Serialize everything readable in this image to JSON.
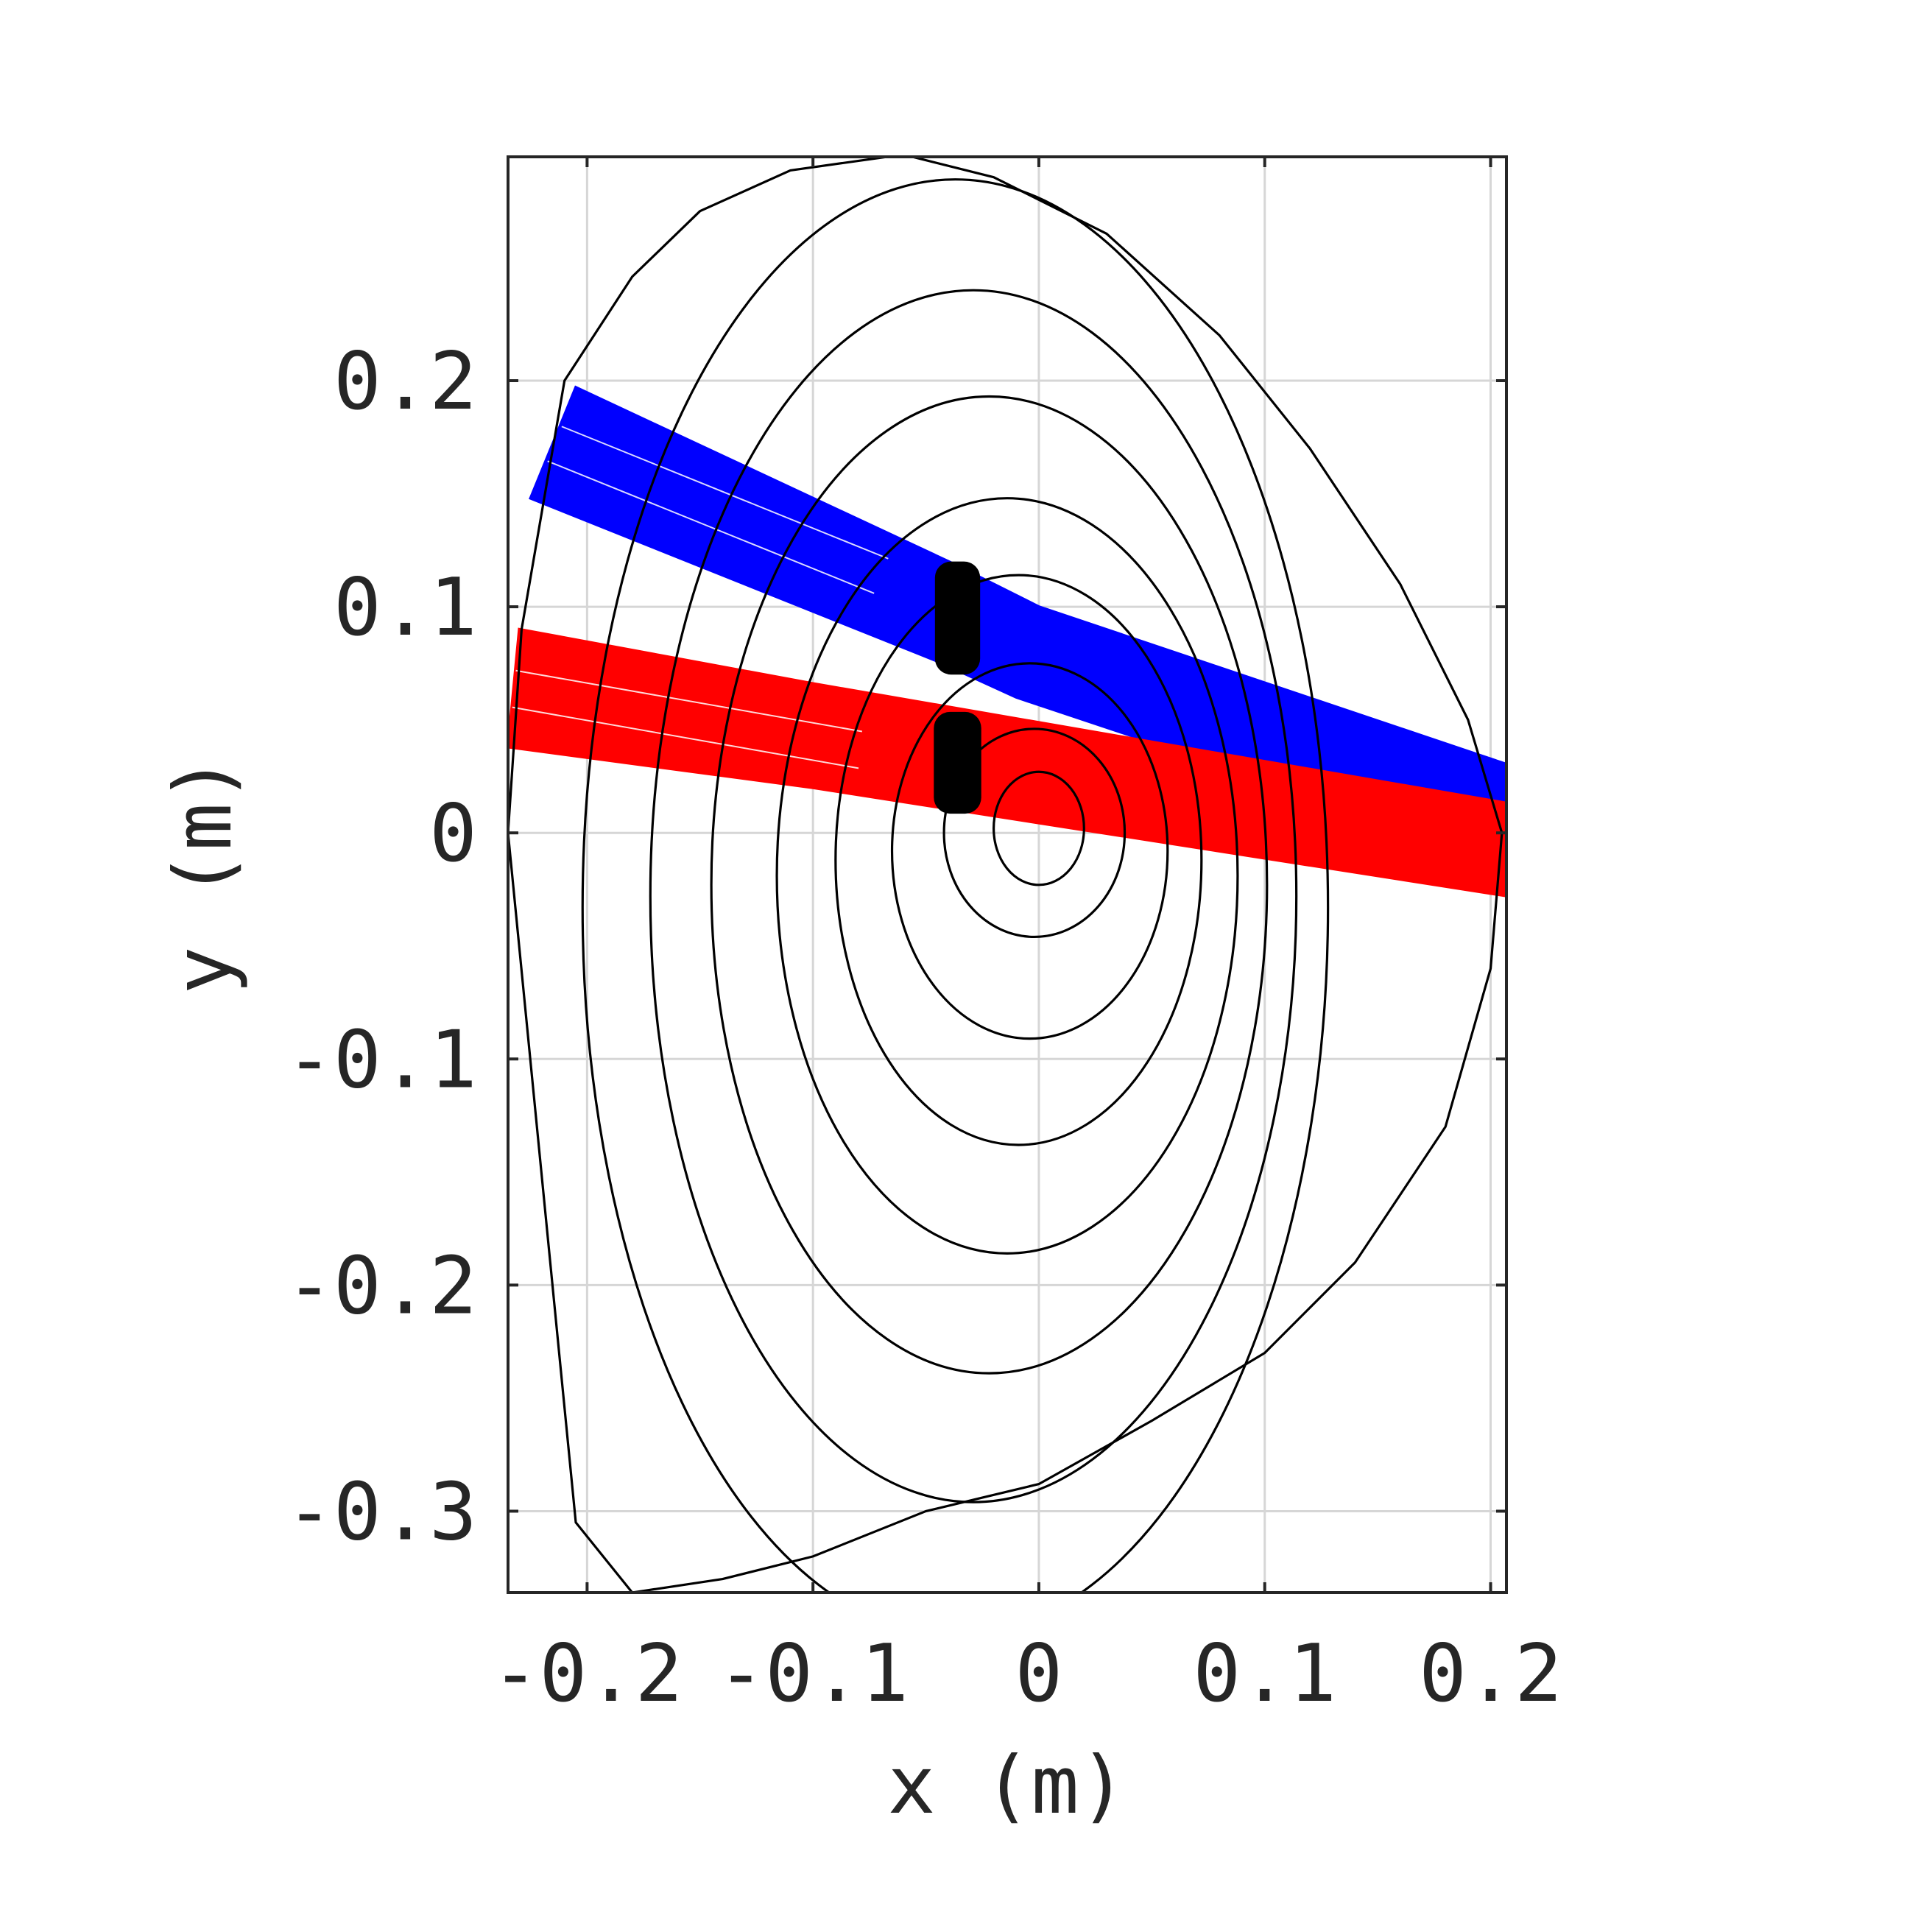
{
  "chart_data": {
    "type": "line",
    "title": "",
    "xlabel": "x (m)",
    "ylabel": "y (m)",
    "xlim": [
      -0.235,
      0.207
    ],
    "ylim": [
      -0.336,
      0.299
    ],
    "grid": true,
    "xticks": [
      -0.2,
      -0.1,
      0,
      0.1,
      0.2
    ],
    "xtick_labels": [
      "-0.2",
      "-0.1",
      "0",
      "0.1",
      "0.2"
    ],
    "yticks": [
      -0.3,
      -0.2,
      -0.1,
      0,
      0.1,
      0.2
    ],
    "ytick_labels": [
      "-0.3",
      "-0.2",
      "-0.1",
      "0",
      "0.1",
      "0.2"
    ],
    "contours": [
      {
        "cx": 0.0,
        "cy": 0.002,
        "rx": 0.02,
        "ry": 0.025
      },
      {
        "cx": -0.002,
        "cy": 0.0,
        "rx": 0.04,
        "ry": 0.046
      },
      {
        "cx": -0.004,
        "cy": -0.008,
        "rx": 0.061,
        "ry": 0.083
      },
      {
        "cx": -0.009,
        "cy": -0.012,
        "rx": 0.081,
        "ry": 0.126
      },
      {
        "cx": -0.014,
        "cy": -0.019,
        "rx": 0.102,
        "ry": 0.167
      },
      {
        "cx": -0.022,
        "cy": -0.023,
        "rx": 0.123,
        "ry": 0.216
      },
      {
        "cx": -0.029,
        "cy": -0.028,
        "rx": 0.143,
        "ry": 0.268
      },
      {
        "cx": -0.037,
        "cy": -0.033,
        "rx": 0.165,
        "ry": 0.322
      }
    ],
    "separatrix": [
      [
        -0.235,
        0.0
      ],
      [
        -0.229,
        0.09
      ],
      [
        -0.21,
        0.2
      ],
      [
        -0.18,
        0.246
      ],
      [
        -0.15,
        0.275
      ],
      [
        -0.11,
        0.293
      ],
      [
        -0.06,
        0.3
      ],
      [
        -0.02,
        0.29
      ],
      [
        0.03,
        0.265
      ],
      [
        0.08,
        0.22
      ],
      [
        0.12,
        0.17
      ],
      [
        0.16,
        0.11
      ],
      [
        0.19,
        0.05
      ],
      [
        0.205,
        0.0
      ],
      [
        0.2,
        -0.06
      ],
      [
        0.18,
        -0.13
      ],
      [
        0.14,
        -0.19
      ],
      [
        0.1,
        -0.23
      ],
      [
        0.05,
        -0.26
      ],
      [
        0.0,
        -0.288
      ],
      [
        -0.05,
        -0.3
      ],
      [
        -0.1,
        -0.32
      ],
      [
        -0.14,
        -0.33
      ],
      [
        -0.18,
        -0.336
      ],
      [
        -0.205,
        -0.305
      ],
      [
        -0.235,
        0.0
      ]
    ],
    "series": [
      {
        "color": "#0000ff",
        "upper": [
          [
            -0.205,
            0.197
          ],
          [
            -0.04,
            0.12
          ],
          [
            0.0,
            0.1
          ],
          [
            0.208,
            0.03
          ]
        ],
        "lower": [
          [
            -0.225,
            0.148
          ],
          [
            -0.045,
            0.076
          ],
          [
            -0.01,
            0.06
          ],
          [
            0.08,
            0.03
          ],
          [
            0.208,
            0.012
          ]
        ]
      },
      {
        "color": "#ff0000",
        "upper": [
          [
            -0.23,
            0.09
          ],
          [
            -0.1,
            0.066
          ],
          [
            0.208,
            0.013
          ]
        ],
        "lower": [
          [
            -0.235,
            0.038
          ],
          [
            -0.1,
            0.02
          ],
          [
            0.208,
            -0.028
          ]
        ]
      }
    ],
    "markers": [
      {
        "x": -0.036,
        "y": 0.095,
        "w": 0.02,
        "h": 0.05,
        "color": "#000000"
      },
      {
        "x": -0.036,
        "y": 0.031,
        "w": 0.021,
        "h": 0.045,
        "color": "#000000"
      }
    ]
  }
}
